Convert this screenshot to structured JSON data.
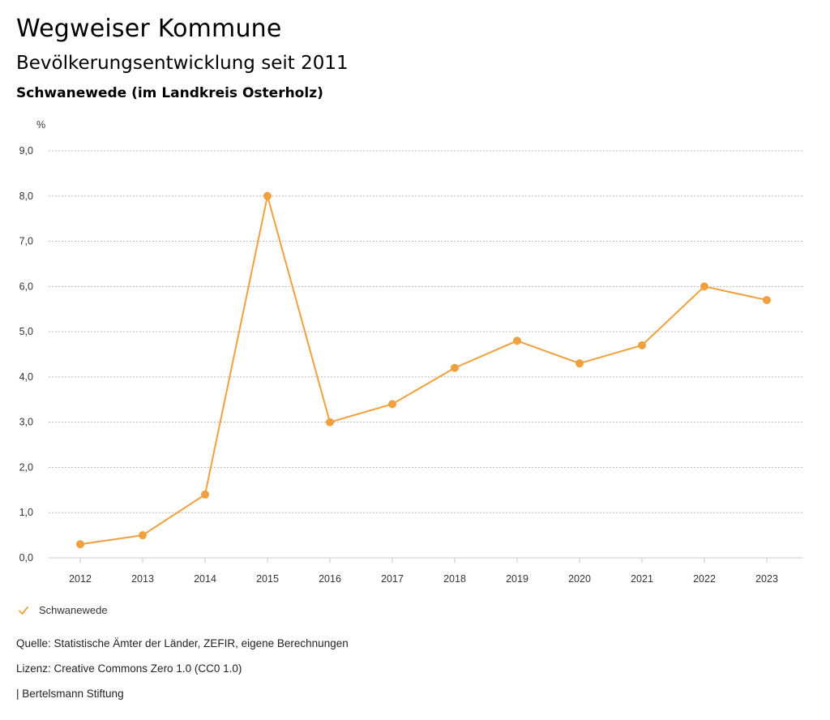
{
  "header": {
    "title": "Wegweiser Kommune",
    "subtitle": "Bevölkerungsentwicklung seit 2011",
    "region": "Schwanewede (im Landkreis Osterholz)"
  },
  "chart_data": {
    "type": "line",
    "title": "Bevölkerungsentwicklung seit 2011",
    "subtitle": "Schwanewede (im Landkreis Osterholz)",
    "xlabel": "",
    "ylabel": "%",
    "categories": [
      "2012",
      "2013",
      "2014",
      "2015",
      "2016",
      "2017",
      "2018",
      "2019",
      "2020",
      "2021",
      "2022",
      "2023"
    ],
    "series": [
      {
        "name": "Schwanewede",
        "color": "#f0a03c",
        "values": [
          0.3,
          0.5,
          1.4,
          8.0,
          3.0,
          3.4,
          4.2,
          4.8,
          4.3,
          4.7,
          6.0,
          5.7
        ]
      }
    ],
    "ylim": [
      0,
      9
    ],
    "yticks": [
      "0,0",
      "1,0",
      "2,0",
      "3,0",
      "4,0",
      "5,0",
      "6,0",
      "7,0",
      "8,0",
      "9,0"
    ],
    "grid": true,
    "legend": "bottom-left"
  },
  "legend": {
    "icon": "check-icon",
    "label": "Schwanewede"
  },
  "footer": {
    "source": "Quelle: Statistische Ämter der Länder, ZEFIR, eigene Berechnungen",
    "license": "Lizenz: Creative Commons Zero 1.0 (CC0 1.0)",
    "publisher": "| Bertelsmann Stiftung"
  }
}
